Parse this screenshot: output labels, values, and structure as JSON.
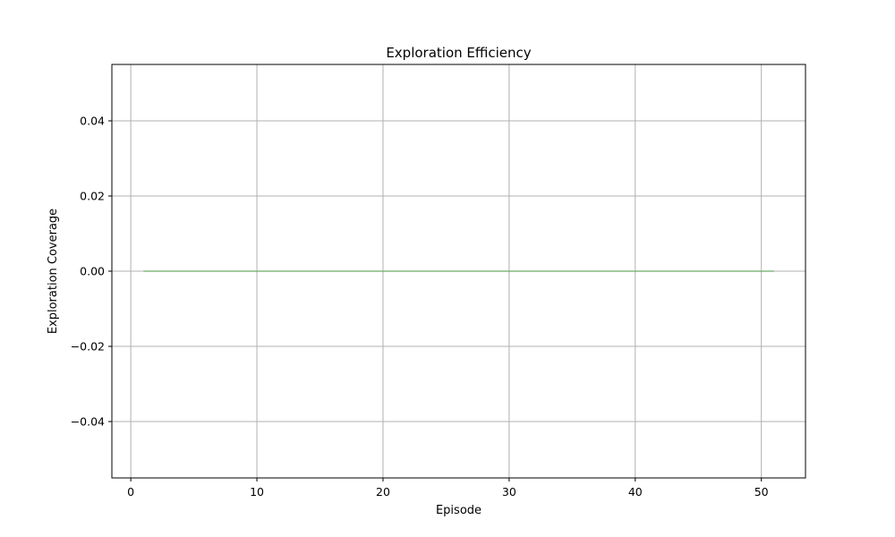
{
  "chart_data": {
    "type": "line",
    "title": "Exploration Efficiency",
    "xlabel": "Episode",
    "ylabel": "Exploration Coverage",
    "xlim": [
      -1.5,
      53.5
    ],
    "ylim": [
      -0.055,
      0.055
    ],
    "x_ticks": [
      0,
      10,
      20,
      30,
      40,
      50
    ],
    "x_tick_labels": [
      "0",
      "10",
      "20",
      "30",
      "40",
      "50"
    ],
    "y_ticks": [
      -0.04,
      -0.02,
      0.0,
      0.02,
      0.04
    ],
    "y_tick_labels": [
      "−0.04",
      "−0.02",
      "0.00",
      "0.02",
      "0.04"
    ],
    "grid": true,
    "series": [
      {
        "color": "#6aaa6a",
        "x": [
          1,
          2,
          3,
          4,
          5,
          6,
          7,
          8,
          9,
          10,
          11,
          12,
          13,
          14,
          15,
          16,
          17,
          18,
          19,
          20,
          21,
          22,
          23,
          24,
          25,
          26,
          27,
          28,
          29,
          30,
          31,
          32,
          33,
          34,
          35,
          36,
          37,
          38,
          39,
          40,
          41,
          42,
          43,
          44,
          45,
          46,
          47,
          48,
          49,
          50,
          51
        ],
        "y": [
          0,
          0,
          0,
          0,
          0,
          0,
          0,
          0,
          0,
          0,
          0,
          0,
          0,
          0,
          0,
          0,
          0,
          0,
          0,
          0,
          0,
          0,
          0,
          0,
          0,
          0,
          0,
          0,
          0,
          0,
          0,
          0,
          0,
          0,
          0,
          0,
          0,
          0,
          0,
          0,
          0,
          0,
          0,
          0,
          0,
          0,
          0,
          0,
          0,
          0,
          0
        ]
      }
    ]
  }
}
